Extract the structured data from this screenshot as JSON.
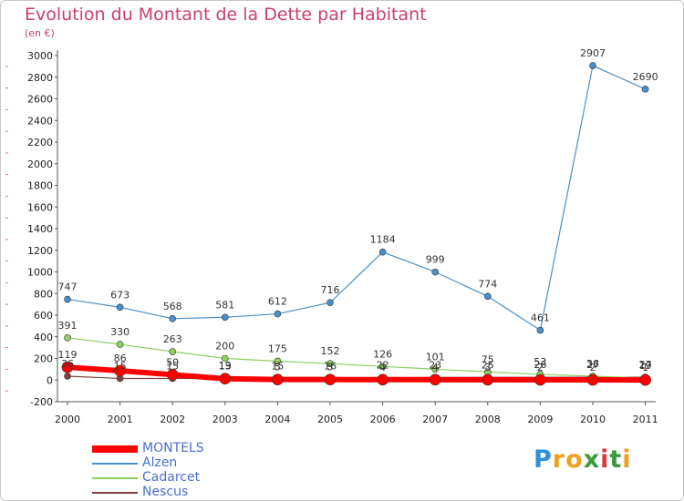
{
  "title": "Evolution du Montant de la Dette par Habitant",
  "subtitle": "(en €)",
  "logo": {
    "letters": [
      {
        "ch": "P",
        "color": "#2f8fd8"
      },
      {
        "ch": "r",
        "color": "#f0a020"
      },
      {
        "ch": "o",
        "color": "#f0a020"
      },
      {
        "ch": "x",
        "color": "#3a9a3a"
      },
      {
        "ch": "i",
        "color": "#d83a3a"
      },
      {
        "ch": "t",
        "color": "#3a9a3a"
      },
      {
        "ch": "i",
        "color": "#f0a020"
      }
    ]
  },
  "chart_data": {
    "type": "line",
    "x": [
      "2000",
      "2001",
      "2002",
      "2003",
      "2004",
      "2005",
      "2006",
      "2007",
      "2008",
      "2009",
      "2010",
      "2011"
    ],
    "ylim": [
      -200,
      3000
    ],
    "yticks": [
      "-200",
      "0",
      "200",
      "400",
      "600",
      "800",
      "1000",
      "1200",
      "1400",
      "1600",
      "1800",
      "2000",
      "2200",
      "2400",
      "2600",
      "2800",
      "3000"
    ],
    "grid": false,
    "legend_position": "bottom-left",
    "series": [
      {
        "name": "MONTELS",
        "color": "#ff0000",
        "values": [
          119,
          86,
          50,
          13,
          5,
          5,
          4,
          4,
          3,
          2,
          2,
          1
        ],
        "labels": [
          "119",
          "86",
          "50",
          "13",
          "5",
          "5",
          "4",
          "4",
          "3",
          "2",
          "2",
          "1"
        ]
      },
      {
        "name": "Alzen",
        "color": "#4a90c8",
        "values": [
          747,
          673,
          568,
          581,
          612,
          716,
          1184,
          999,
          774,
          461,
          2907,
          2690
        ],
        "labels": [
          "747",
          "673",
          "568",
          "581",
          "612",
          "716",
          "1184",
          "999",
          "774",
          "461",
          "2907",
          "2690"
        ]
      },
      {
        "name": "Cadarcet",
        "color": "#90d060",
        "values": [
          391,
          330,
          263,
          200,
          175,
          152,
          126,
          101,
          75,
          53,
          36,
          19
        ],
        "labels": [
          "391",
          "330",
          "263",
          "200",
          "175",
          "152",
          "126",
          "101",
          "75",
          "53",
          "36",
          "19"
        ]
      },
      {
        "name": "Nescus",
        "color": "#804040",
        "values": [
          36,
          15,
          15,
          19,
          15,
          16,
          22,
          23,
          25,
          26,
          27,
          27
        ],
        "labels": [
          "36",
          "15",
          "15",
          "19",
          "15",
          "16",
          "22",
          "23",
          "25",
          "26",
          "27",
          "27"
        ]
      }
    ]
  }
}
